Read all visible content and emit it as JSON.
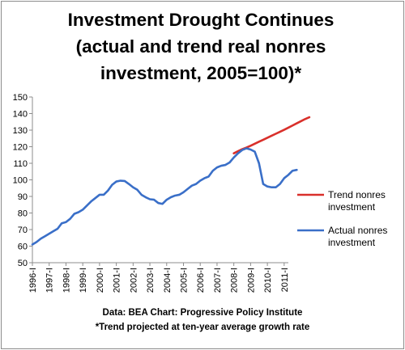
{
  "title_lines": [
    "Investment Drought Continues",
    "(actual and trend real nonres",
    "investment, 2005=100)*"
  ],
  "source_lines": [
    "Data: BEA Chart: Progressive Policy Institute",
    "*Trend projected at ten-year average growth rate"
  ],
  "chart_data": {
    "type": "line",
    "title": "Investment Drought Continues (actual and trend real nonres investment, 2005=100)*",
    "xlabel": "",
    "ylabel": "",
    "ylim": [
      50,
      150
    ],
    "y_ticks": [
      50,
      60,
      70,
      80,
      90,
      100,
      110,
      120,
      130,
      140,
      150
    ],
    "x_tick_labels": [
      "1996-I",
      "1997-I",
      "1998-I",
      "1999-I",
      "2000-I",
      "2001-I",
      "2002-I",
      "2003-I",
      "2004-I",
      "2005-I",
      "2006-I",
      "2007-I",
      "2008-I",
      "2009-I",
      "2010-I",
      "2011-I"
    ],
    "x_start_year": 1996,
    "quarters_per_year": 4,
    "grid": false,
    "legend_position": "right",
    "series": [
      {
        "name": "Trend nonres investment",
        "color": "#d9302b",
        "start_quarter_index": 48,
        "values": [
          116.0,
          117.3,
          118.5,
          119.5,
          120.6,
          121.8,
          123.0,
          124.2,
          125.4,
          126.6,
          127.8,
          129.0,
          130.2,
          131.5,
          132.8,
          134.1,
          135.4,
          136.7,
          137.8
        ]
      },
      {
        "name": "Actual nonres investment",
        "color": "#3a6fc8",
        "start_quarter_index": 0,
        "values": [
          61.0,
          62.5,
          64.5,
          66.0,
          67.5,
          69.0,
          70.5,
          73.8,
          74.5,
          76.5,
          79.5,
          80.5,
          82.0,
          84.5,
          87.0,
          89.0,
          91.0,
          91.0,
          93.5,
          97.0,
          99.0,
          99.5,
          99.3,
          97.5,
          95.5,
          94.0,
          91.0,
          89.5,
          88.3,
          88.0,
          86.0,
          85.5,
          88.0,
          89.5,
          90.5,
          91.0,
          92.5,
          94.5,
          96.5,
          97.5,
          99.5,
          101.0,
          102.0,
          105.5,
          107.5,
          108.5,
          109.0,
          110.5,
          113.5,
          116.0,
          118.0,
          119.0,
          118.3,
          117.0,
          110.0,
          97.5,
          96.0,
          95.5,
          95.5,
          97.5,
          101.0,
          103.0,
          105.5,
          106.0
        ]
      }
    ]
  }
}
